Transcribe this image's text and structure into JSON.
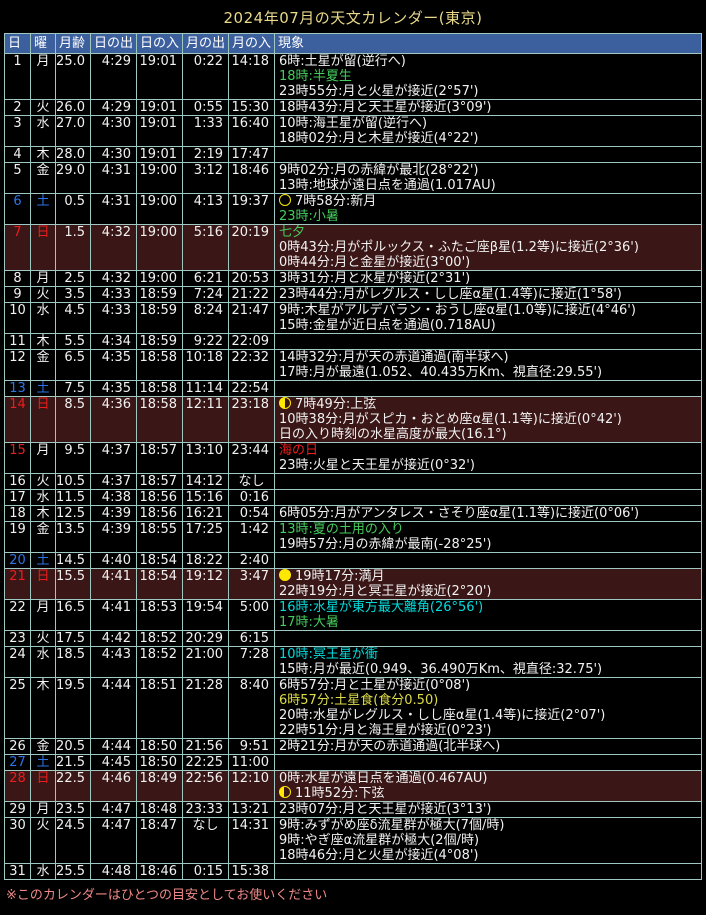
{
  "title": "2024年07月の天文カレンダー(東京)",
  "footer_note": "※このカレンダーはひとつの目安としてお使いください",
  "colors": {
    "page_bg": "#000000",
    "border": "#a0c8c3",
    "header_bg": "#3c5f9e",
    "header_text": "#ffffff",
    "text": "#f2f2f2",
    "green": "#44cc5c",
    "cyan": "#00dcdc",
    "yellow": "#dcdc46",
    "red": "#ee1c1c",
    "blue": "#2e73e8",
    "sunday_row_bg": "#3a1616",
    "title_text": "#e8d88a",
    "footer_text": "#ee8888",
    "moon_icon": "#ffe800"
  },
  "table": {
    "headers": [
      "日",
      "曜",
      "月齢",
      "日の出",
      "日の入",
      "月の出",
      "月の入",
      "現象"
    ],
    "rows": [
      {
        "day": "1",
        "dow": "月",
        "moon_age": "25.0",
        "sunrise": "4:29",
        "sunset": "19:01",
        "moonrise": "0:22",
        "moonset": "14:18",
        "events": [
          {
            "text": "6時:土星が留(逆行へ)"
          },
          {
            "text": "18時:半夏生",
            "color": "green"
          },
          {
            "text": "23時55分:月と火星が接近(2°57')"
          }
        ]
      },
      {
        "day": "2",
        "dow": "火",
        "moon_age": "26.0",
        "sunrise": "4:29",
        "sunset": "19:01",
        "moonrise": "0:55",
        "moonset": "15:30",
        "events": [
          {
            "text": "18時43分:月と天王星が接近(3°09')"
          }
        ]
      },
      {
        "day": "3",
        "dow": "水",
        "moon_age": "27.0",
        "sunrise": "4:30",
        "sunset": "19:01",
        "moonrise": "1:33",
        "moonset": "16:40",
        "events": [
          {
            "text": "10時:海王星が留(逆行へ)"
          },
          {
            "text": "18時02分:月と木星が接近(4°22')"
          }
        ]
      },
      {
        "day": "4",
        "dow": "木",
        "moon_age": "28.0",
        "sunrise": "4:30",
        "sunset": "19:01",
        "moonrise": "2:19",
        "moonset": "17:47",
        "events": []
      },
      {
        "day": "5",
        "dow": "金",
        "moon_age": "29.0",
        "sunrise": "4:31",
        "sunset": "19:00",
        "moonrise": "3:12",
        "moonset": "18:46",
        "events": [
          {
            "text": "9時02分:月の赤緯が最北(28°22')"
          },
          {
            "text": "13時:地球が遠日点を通過(1.017AU)"
          }
        ]
      },
      {
        "day": "6",
        "dow": "土",
        "day_color": "blue",
        "dow_color": "blue",
        "moon_age": "0.5",
        "sunrise": "4:31",
        "sunset": "19:00",
        "moonrise": "4:13",
        "moonset": "19:37",
        "events": [
          {
            "icon": "new-moon",
            "text": "7時58分:新月"
          },
          {
            "text": "23時:小暑",
            "color": "green"
          }
        ]
      },
      {
        "day": "7",
        "dow": "日",
        "day_color": "red",
        "dow_color": "red",
        "sunday": true,
        "moon_age": "1.5",
        "sunrise": "4:32",
        "sunset": "19:00",
        "moonrise": "5:16",
        "moonset": "20:19",
        "events": [
          {
            "text": "七夕",
            "color": "green"
          },
          {
            "text": "0時43分:月がポルックス・ふたご座β星(1.2等)に接近(2°36')"
          },
          {
            "text": "0時44分:月と金星が接近(3°00')"
          }
        ]
      },
      {
        "day": "8",
        "dow": "月",
        "moon_age": "2.5",
        "sunrise": "4:32",
        "sunset": "19:00",
        "moonrise": "6:21",
        "moonset": "20:53",
        "events": [
          {
            "text": "3時31分:月と水星が接近(2°31')"
          }
        ]
      },
      {
        "day": "9",
        "dow": "火",
        "moon_age": "3.5",
        "sunrise": "4:33",
        "sunset": "18:59",
        "moonrise": "7:24",
        "moonset": "21:22",
        "events": [
          {
            "text": "23時44分:月がレグルス・しし座α星(1.4等)に接近(1°58')"
          }
        ]
      },
      {
        "day": "10",
        "dow": "水",
        "moon_age": "4.5",
        "sunrise": "4:33",
        "sunset": "18:59",
        "moonrise": "8:24",
        "moonset": "21:47",
        "events": [
          {
            "text": "9時:木星がアルデバラン・おうし座α星(1.0等)に接近(4°46')"
          },
          {
            "text": "15時:金星が近日点を通過(0.718AU)"
          }
        ]
      },
      {
        "day": "11",
        "dow": "木",
        "moon_age": "5.5",
        "sunrise": "4:34",
        "sunset": "18:59",
        "moonrise": "9:22",
        "moonset": "22:09",
        "events": []
      },
      {
        "day": "12",
        "dow": "金",
        "moon_age": "6.5",
        "sunrise": "4:35",
        "sunset": "18:58",
        "moonrise": "10:18",
        "moonset": "22:32",
        "events": [
          {
            "text": "14時32分:月が天の赤道通過(南半球へ)"
          },
          {
            "text": "17時:月が最遠(1.052、40.435万Km、視直径:29.55')"
          }
        ]
      },
      {
        "day": "13",
        "dow": "土",
        "day_color": "blue",
        "dow_color": "blue",
        "moon_age": "7.5",
        "sunrise": "4:35",
        "sunset": "18:58",
        "moonrise": "11:14",
        "moonset": "22:54",
        "events": []
      },
      {
        "day": "14",
        "dow": "日",
        "day_color": "red",
        "dow_color": "red",
        "sunday": true,
        "moon_age": "8.5",
        "sunrise": "4:36",
        "sunset": "18:58",
        "moonrise": "12:11",
        "moonset": "23:18",
        "events": [
          {
            "icon": "first-quarter",
            "text": "7時49分:上弦"
          },
          {
            "text": "10時38分:月がスピカ・おとめ座α星(1.1等)に接近(0°42')"
          },
          {
            "text": "日の入り時刻の水星高度が最大(16.1°)"
          }
        ]
      },
      {
        "day": "15",
        "dow": "月",
        "day_color": "red",
        "moon_age": "9.5",
        "sunrise": "4:37",
        "sunset": "18:57",
        "moonrise": "13:10",
        "moonset": "23:44",
        "events": [
          {
            "text": "海の日",
            "color": "red"
          },
          {
            "text": "23時:火星と天王星が接近(0°32')"
          }
        ]
      },
      {
        "day": "16",
        "dow": "火",
        "moon_age": "10.5",
        "sunrise": "4:37",
        "sunset": "18:57",
        "moonrise": "14:12",
        "moonset": "なし",
        "events": []
      },
      {
        "day": "17",
        "dow": "水",
        "moon_age": "11.5",
        "sunrise": "4:38",
        "sunset": "18:56",
        "moonrise": "15:16",
        "moonset": "0:16",
        "events": []
      },
      {
        "day": "18",
        "dow": "木",
        "moon_age": "12.5",
        "sunrise": "4:39",
        "sunset": "18:56",
        "moonrise": "16:21",
        "moonset": "0:54",
        "events": [
          {
            "text": "6時05分:月がアンタレス・さそり座α星(1.1等)に接近(0°06')"
          }
        ]
      },
      {
        "day": "19",
        "dow": "金",
        "moon_age": "13.5",
        "sunrise": "4:39",
        "sunset": "18:55",
        "moonrise": "17:25",
        "moonset": "1:42",
        "events": [
          {
            "text": "13時:夏の土用の入り",
            "color": "green"
          },
          {
            "text": "19時57分:月の赤緯が最南(-28°25')"
          }
        ]
      },
      {
        "day": "20",
        "dow": "土",
        "day_color": "blue",
        "dow_color": "blue",
        "moon_age": "14.5",
        "sunrise": "4:40",
        "sunset": "18:54",
        "moonrise": "18:22",
        "moonset": "2:40",
        "events": []
      },
      {
        "day": "21",
        "dow": "日",
        "day_color": "red",
        "dow_color": "red",
        "sunday": true,
        "moon_age": "15.5",
        "sunrise": "4:41",
        "sunset": "18:54",
        "moonrise": "19:12",
        "moonset": "3:47",
        "events": [
          {
            "icon": "full-moon",
            "text": "19時17分:満月"
          },
          {
            "text": "22時19分:月と冥王星が接近(2°20')"
          }
        ]
      },
      {
        "day": "22",
        "dow": "月",
        "moon_age": "16.5",
        "sunrise": "4:41",
        "sunset": "18:53",
        "moonrise": "19:54",
        "moonset": "5:00",
        "events": [
          {
            "text": "16時:水星が東方最大離角(26°56')",
            "color": "cyan"
          },
          {
            "text": "17時:大暑",
            "color": "green"
          }
        ]
      },
      {
        "day": "23",
        "dow": "火",
        "moon_age": "17.5",
        "sunrise": "4:42",
        "sunset": "18:52",
        "moonrise": "20:29",
        "moonset": "6:15",
        "events": []
      },
      {
        "day": "24",
        "dow": "水",
        "moon_age": "18.5",
        "sunrise": "4:43",
        "sunset": "18:52",
        "moonrise": "21:00",
        "moonset": "7:28",
        "events": [
          {
            "text": "10時:冥王星が衝",
            "color": "cyan"
          },
          {
            "text": "15時:月が最近(0.949、36.490万Km、視直径:32.75')"
          }
        ]
      },
      {
        "day": "25",
        "dow": "木",
        "moon_age": "19.5",
        "sunrise": "4:44",
        "sunset": "18:51",
        "moonrise": "21:28",
        "moonset": "8:40",
        "events": [
          {
            "text": "6時57分:月と土星が接近(0°08')"
          },
          {
            "text": "6時57分:土星食(食分0.50)",
            "color": "yellow"
          },
          {
            "text": "20時:水星がレグルス・しし座α星(1.4等)に接近(2°07')"
          },
          {
            "text": "22時51分:月と海王星が接近(0°23')"
          }
        ]
      },
      {
        "day": "26",
        "dow": "金",
        "moon_age": "20.5",
        "sunrise": "4:44",
        "sunset": "18:50",
        "moonrise": "21:56",
        "moonset": "9:51",
        "events": [
          {
            "text": "2時21分:月が天の赤道通過(北半球へ)"
          }
        ]
      },
      {
        "day": "27",
        "dow": "土",
        "day_color": "blue",
        "dow_color": "blue",
        "moon_age": "21.5",
        "sunrise": "4:45",
        "sunset": "18:50",
        "moonrise": "22:25",
        "moonset": "11:00",
        "events": []
      },
      {
        "day": "28",
        "dow": "日",
        "day_color": "red",
        "dow_color": "red",
        "sunday": true,
        "moon_age": "22.5",
        "sunrise": "4:46",
        "sunset": "18:49",
        "moonrise": "22:56",
        "moonset": "12:10",
        "events": [
          {
            "text": "0時:水星が遠日点を通過(0.467AU)"
          },
          {
            "icon": "last-quarter",
            "text": "11時52分:下弦"
          }
        ]
      },
      {
        "day": "29",
        "dow": "月",
        "moon_age": "23.5",
        "sunrise": "4:47",
        "sunset": "18:48",
        "moonrise": "23:33",
        "moonset": "13:21",
        "events": [
          {
            "text": "23時07分:月と天王星が接近(3°13')"
          }
        ]
      },
      {
        "day": "30",
        "dow": "火",
        "moon_age": "24.5",
        "sunrise": "4:47",
        "sunset": "18:47",
        "moonrise": "なし",
        "moonset": "14:31",
        "events": [
          {
            "text": "9時:みずがめ座δ流星群が極大(7個/時)"
          },
          {
            "text": "9時:やぎ座α流星群が極大(2個/時)"
          },
          {
            "text": "18時46分:月と火星が接近(4°08')"
          }
        ]
      },
      {
        "day": "31",
        "dow": "水",
        "moon_age": "25.5",
        "sunrise": "4:48",
        "sunset": "18:46",
        "moonrise": "0:15",
        "moonset": "15:38",
        "events": []
      }
    ]
  }
}
